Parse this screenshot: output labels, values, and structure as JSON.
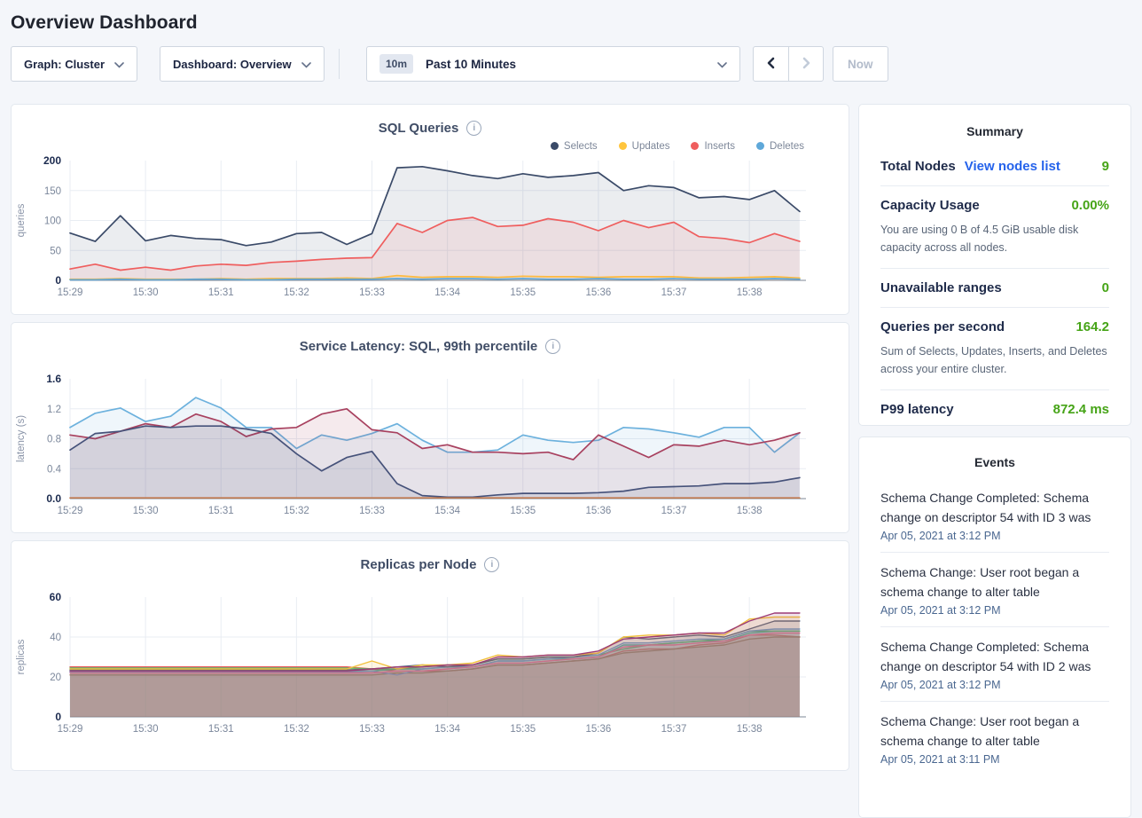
{
  "page": {
    "title": "Overview Dashboard"
  },
  "toolbar": {
    "graph_dropdown": "Graph: Cluster",
    "dashboard_dropdown": "Dashboard: Overview",
    "range_badge": "10m",
    "range_label": "Past 10 Minutes",
    "now_label": "Now"
  },
  "summary": {
    "title": "Summary",
    "rows": [
      {
        "label": "Total Nodes",
        "link": "View nodes list",
        "value": "9"
      },
      {
        "label": "Capacity Usage",
        "value": "0.00%",
        "description": "You are using 0 B of 4.5 GiB usable disk capacity across all nodes."
      },
      {
        "label": "Unavailable ranges",
        "value": "0"
      },
      {
        "label": "Queries per second",
        "value": "164.2",
        "description": "Sum of Selects, Updates, Inserts, and Deletes across your entire cluster."
      },
      {
        "label": "P99 latency",
        "value": "872.4 ms"
      }
    ]
  },
  "events": {
    "title": "Events",
    "items": [
      {
        "message": "Schema Change Completed: Schema change on descriptor 54 with ID 3 was",
        "time": "Apr 05, 2021 at 3:12 PM"
      },
      {
        "message": "Schema Change: User root began a schema change to alter table",
        "time": "Apr 05, 2021 at 3:12 PM"
      },
      {
        "message": "Schema Change Completed: Schema change on descriptor 54 with ID 2 was",
        "time": "Apr 05, 2021 at 3:12 PM"
      },
      {
        "message": "Schema Change: User root began a schema change to alter table",
        "time": "Apr 05, 2021 at 3:11 PM"
      }
    ]
  },
  "chart_data": [
    {
      "type": "area",
      "title": "SQL Queries",
      "ylabel": "queries",
      "ylim": [
        0,
        200
      ],
      "ytick_values": [
        0,
        50,
        100,
        150,
        200
      ],
      "ytick_labels": [
        "0",
        "50",
        "100",
        "150",
        "200"
      ],
      "x_interval_seconds": 20,
      "x_tick_labels": [
        "15:29",
        "15:30",
        "15:31",
        "15:32",
        "15:33",
        "15:34",
        "15:35",
        "15:36",
        "15:37",
        "15:38"
      ],
      "legend": true,
      "legend_position": "top-right",
      "grid": true,
      "series": [
        {
          "name": "Selects",
          "color": "#3a4a68",
          "values": [
            79,
            65,
            108,
            66,
            75,
            70,
            68,
            58,
            64,
            78,
            80,
            60,
            78,
            188,
            190,
            183,
            175,
            170,
            178,
            172,
            175,
            180,
            150,
            158,
            155,
            138,
            140,
            135,
            150,
            115
          ]
        },
        {
          "name": "Updates",
          "color": "#ffc53d",
          "values": [
            2,
            2,
            3,
            2,
            2,
            2,
            3,
            2,
            3,
            3,
            3,
            4,
            3,
            8,
            5,
            6,
            6,
            5,
            7,
            6,
            6,
            5,
            6,
            6,
            6,
            4,
            4,
            5,
            6,
            4
          ]
        },
        {
          "name": "Inserts",
          "color": "#ef5e5e",
          "values": [
            19,
            27,
            17,
            22,
            17,
            24,
            27,
            25,
            30,
            32,
            35,
            37,
            38,
            95,
            80,
            100,
            105,
            90,
            92,
            103,
            97,
            83,
            100,
            88,
            97,
            73,
            70,
            63,
            78,
            65
          ]
        },
        {
          "name": "Deletes",
          "color": "#5fa8d9",
          "values": [
            1,
            1,
            2,
            1,
            1,
            2,
            2,
            1,
            1,
            2,
            2,
            2,
            2,
            3,
            2,
            3,
            3,
            2,
            3,
            2,
            2,
            3,
            2,
            2,
            3,
            2,
            2,
            2,
            3,
            2
          ]
        }
      ]
    },
    {
      "type": "area",
      "title": "Service Latency: SQL, 99th percentile",
      "ylabel": "latency (s)",
      "ylim": [
        0,
        1.6
      ],
      "ytick_values": [
        0,
        0.4,
        0.8,
        1.2,
        1.6
      ],
      "ytick_labels": [
        "0.0",
        "0.4",
        "0.8",
        "1.2",
        "1.6"
      ],
      "x_interval_seconds": 20,
      "x_tick_labels": [
        "15:29",
        "15:30",
        "15:31",
        "15:32",
        "15:33",
        "15:34",
        "15:35",
        "15:36",
        "15:37",
        "15:38"
      ],
      "legend": false,
      "grid": true,
      "series": [
        {
          "color": "#6cb1dd",
          "values": [
            0.95,
            1.14,
            1.21,
            1.03,
            1.1,
            1.35,
            1.21,
            0.95,
            0.95,
            0.67,
            0.85,
            0.78,
            0.87,
            1.0,
            0.78,
            0.62,
            0.62,
            0.65,
            0.85,
            0.78,
            0.75,
            0.78,
            0.95,
            0.93,
            0.88,
            0.82,
            0.95,
            0.95,
            0.62,
            0.88
          ]
        },
        {
          "color": "#a8415f",
          "values": [
            0.85,
            0.8,
            0.9,
            1.0,
            0.95,
            1.13,
            1.03,
            0.83,
            0.93,
            0.95,
            1.13,
            1.2,
            0.92,
            0.88,
            0.67,
            0.72,
            0.62,
            0.62,
            0.6,
            0.62,
            0.52,
            0.85,
            0.7,
            0.55,
            0.72,
            0.7,
            0.78,
            0.72,
            0.78,
            0.88
          ]
        },
        {
          "color": "#46527a",
          "values": [
            0.65,
            0.87,
            0.9,
            0.97,
            0.95,
            0.97,
            0.97,
            0.93,
            0.87,
            0.6,
            0.37,
            0.55,
            0.63,
            0.2,
            0.04,
            0.02,
            0.02,
            0.05,
            0.07,
            0.07,
            0.07,
            0.08,
            0.1,
            0.15,
            0.16,
            0.17,
            0.2,
            0.2,
            0.22,
            0.28
          ]
        },
        {
          "color": "#c07a50",
          "values": [
            0.01,
            0.01,
            0.01,
            0.01,
            0.01,
            0.01,
            0.01,
            0.01,
            0.01,
            0.01,
            0.01,
            0.01,
            0.01,
            0.01,
            0.01,
            0.01,
            0.01,
            0.01,
            0.01,
            0.01,
            0.01,
            0.01,
            0.01,
            0.01,
            0.01,
            0.01,
            0.01,
            0.01,
            0.01,
            0.01
          ]
        }
      ]
    },
    {
      "type": "area",
      "title": "Replicas per Node",
      "ylabel": "replicas",
      "ylim": [
        0,
        60
      ],
      "ytick_values": [
        0,
        20,
        40,
        60
      ],
      "ytick_labels": [
        "0",
        "20",
        "40",
        "60"
      ],
      "x_interval_seconds": 20,
      "x_tick_labels": [
        "15:29",
        "15:30",
        "15:31",
        "15:32",
        "15:33",
        "15:34",
        "15:35",
        "15:36",
        "15:37",
        "15:38"
      ],
      "legend": false,
      "grid": true,
      "series": [
        {
          "color": "#ea5757",
          "values": [
            25,
            25,
            25,
            25,
            25,
            25,
            25,
            25,
            25,
            25,
            25,
            25,
            24,
            23,
            23,
            23,
            24,
            26,
            26,
            27,
            28,
            29,
            33,
            34,
            34,
            36,
            37,
            41,
            41,
            40
          ]
        },
        {
          "color": "#a5714f",
          "values": [
            21,
            21,
            21,
            21,
            21,
            21,
            21,
            21,
            21,
            21,
            21,
            21,
            21,
            22,
            22,
            23,
            24,
            26,
            26,
            27,
            28,
            29,
            32,
            33,
            34,
            35,
            36,
            39,
            40,
            40
          ]
        },
        {
          "color": "#46b0a2",
          "values": [
            23,
            23,
            23,
            23,
            23,
            23,
            23,
            23,
            23,
            23,
            23,
            23,
            23,
            24,
            24,
            25,
            25,
            28,
            28,
            29,
            29,
            30,
            36,
            36,
            37,
            38,
            38,
            42,
            43,
            43
          ]
        },
        {
          "color": "#55b56f",
          "values": [
            24.5,
            24.5,
            24.5,
            24.5,
            24.5,
            24.5,
            24.5,
            24.5,
            24.5,
            24.5,
            24.5,
            24.5,
            24,
            24,
            25,
            26,
            26,
            29,
            29,
            30,
            30,
            31,
            34,
            36,
            37,
            38,
            39,
            43,
            43,
            43
          ]
        },
        {
          "color": "#6d9fd4",
          "values": [
            22.5,
            22.5,
            22.5,
            22.5,
            22.5,
            22.5,
            22.5,
            22.5,
            22.5,
            22.5,
            22.5,
            22.5,
            23,
            21,
            24,
            25,
            25,
            28,
            28,
            29,
            30,
            31,
            37,
            37,
            38,
            39,
            39,
            43,
            44,
            44
          ]
        },
        {
          "color": "#e0709f",
          "values": [
            22,
            22,
            22,
            22,
            22,
            22,
            22,
            22,
            22,
            22,
            22,
            22,
            22,
            23,
            23,
            24,
            25,
            27,
            27,
            28,
            29,
            30,
            35,
            36,
            36,
            37,
            38,
            41,
            42,
            42
          ]
        },
        {
          "color": "#515f7d",
          "values": [
            23.5,
            23.5,
            23.5,
            23.5,
            23.5,
            23.5,
            23.5,
            23.5,
            23.5,
            23.5,
            23.5,
            23.5,
            24,
            25,
            26,
            25,
            26,
            29,
            29,
            30,
            30,
            32,
            40,
            39,
            40,
            41,
            40,
            44,
            48,
            48
          ]
        },
        {
          "color": "#f2c13e",
          "values": [
            24,
            24,
            24,
            24,
            24,
            24,
            24,
            24,
            24,
            24,
            24,
            24,
            28,
            24,
            26,
            26,
            27,
            31,
            30,
            31,
            31,
            32,
            40,
            41,
            41,
            42,
            41,
            49,
            50,
            50
          ]
        },
        {
          "color": "#9c3b76",
          "values": [
            23,
            23,
            23,
            23,
            23,
            23,
            23,
            23,
            23,
            23,
            23,
            23,
            24,
            25,
            25,
            26,
            26,
            30,
            30,
            31,
            31,
            33,
            39,
            40,
            41,
            42,
            42,
            48,
            52,
            52
          ]
        }
      ]
    }
  ],
  "colors": {
    "accent_green": "#46a417",
    "link_blue": "#2563eb",
    "page_background": "#f4f6fa",
    "card_border": "#e3e8ef"
  }
}
